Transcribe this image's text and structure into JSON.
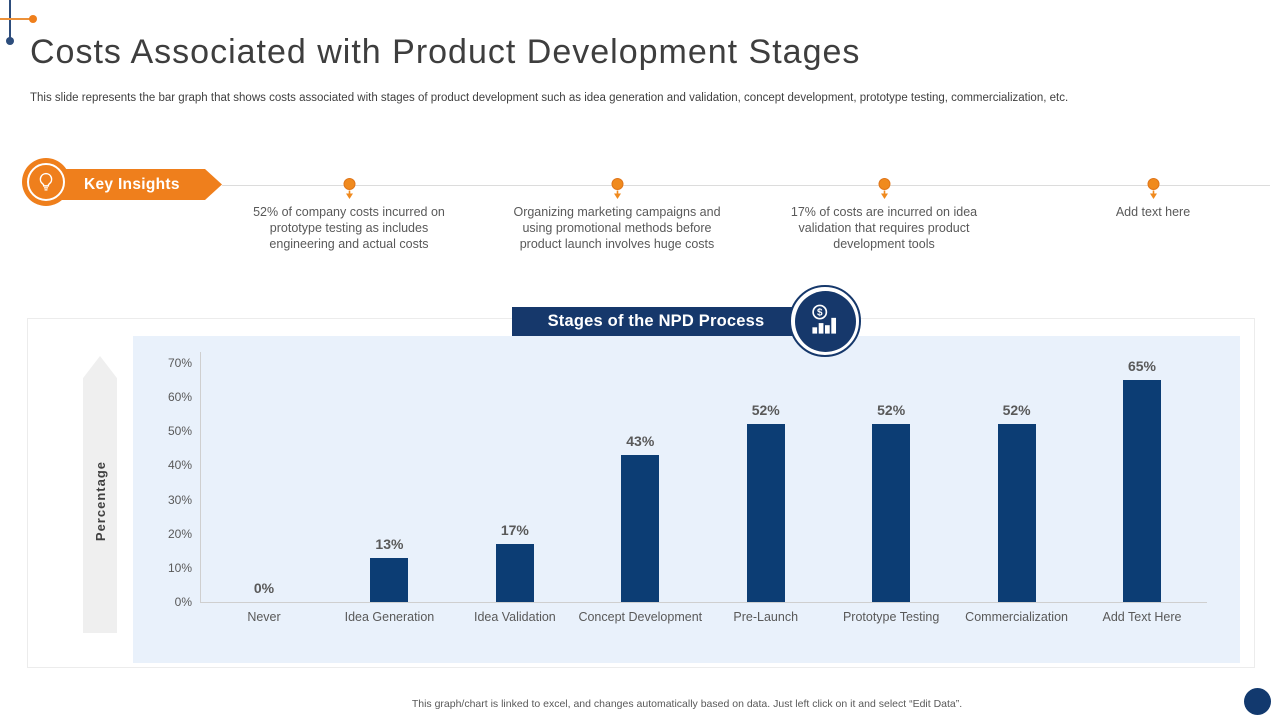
{
  "colors": {
    "accent_orange": "#EF7F1C",
    "navy": "#16386B",
    "bar_navy": "#0C3D74",
    "chart_background": "#E9F1FB",
    "text_gray": "#595959"
  },
  "header": {
    "title": "Costs Associated with Product Development Stages",
    "subtitle": "This slide represents the bar graph that shows costs associated with stages of product development such as idea generation and validation, concept development, prototype testing, commercialization, etc."
  },
  "key_insights": {
    "label": "Key Insights",
    "items": [
      {
        "text": "52% of company costs incurred on prototype testing as includes engineering and actual costs"
      },
      {
        "text": "Organizing marketing campaigns and using promotional methods before product launch involves huge costs"
      },
      {
        "text": "17% of costs are incurred on idea validation that requires product development tools"
      },
      {
        "text": "Add text here"
      }
    ]
  },
  "chart_section": {
    "banner_title": "Stages of the NPD Process",
    "icon": "dollar-bar-chart-icon",
    "footer_note": "This graph/chart is linked to excel, and changes automatically based on data. Just left click on it and select “Edit Data”."
  },
  "chart_data": {
    "type": "bar",
    "title": "Stages of the NPD Process",
    "categories": [
      "Never",
      "Idea Generation",
      "Idea Validation",
      "Concept Development",
      "Pre-Launch",
      "Prototype Testing",
      "Commercialization",
      "Add Text Here"
    ],
    "values": [
      0,
      13,
      17,
      43,
      52,
      52,
      52,
      65
    ],
    "data_labels": [
      "0%",
      "13%",
      "17%",
      "43%",
      "52%",
      "52%",
      "52%",
      "65%"
    ],
    "ylabel": "Percentage",
    "xlabel": "",
    "ylim": [
      0,
      70
    ],
    "ytick_labels": [
      "0%",
      "10%",
      "20%",
      "30%",
      "40%",
      "50%",
      "60%",
      "70%"
    ],
    "grid": false,
    "legend": false,
    "bar_color": "#0C3D74",
    "plot_background": "#E9F1FB"
  }
}
